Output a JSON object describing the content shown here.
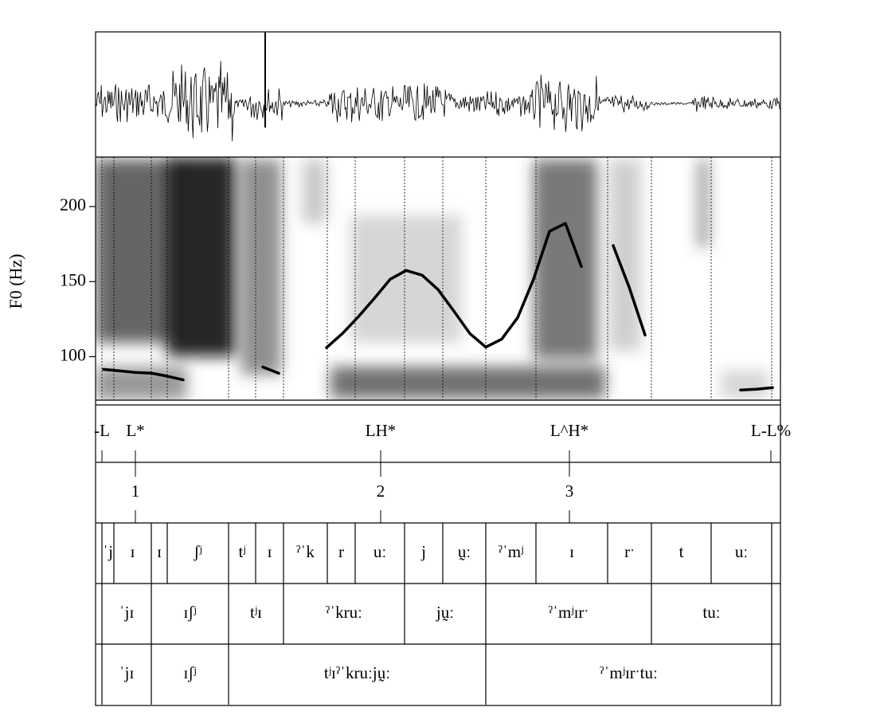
{
  "chart_data": {
    "type": "line",
    "ylabel": "F0 (Hz)",
    "color": "#000000",
    "ylim": [
      71,
      233
    ],
    "yticks": [
      100,
      150,
      200
    ],
    "categories": [
      null,
      null,
      null,
      null,
      null,
      null,
      null,
      null,
      null,
      null,
      null,
      null,
      null,
      null,
      null,
      null,
      null,
      null,
      null,
      null,
      null,
      null,
      null,
      null,
      null,
      null,
      null,
      null,
      null,
      null,
      null,
      null,
      null,
      null,
      null,
      null,
      null,
      null,
      null,
      null,
      null,
      null,
      null
    ],
    "values": [
      91.5,
      90.5,
      89.5,
      89,
      87,
      84.5,
      null,
      null,
      null,
      null,
      93.1,
      88.9,
      null,
      null,
      106,
      115.4,
      126.6,
      138.8,
      151.6,
      157.4,
      154.3,
      144.7,
      130.3,
      115.4,
      106.4,
      111.7,
      126,
      151.6,
      183.5,
      188.8,
      160,
      null,
      174,
      146.3,
      114.4,
      null,
      null,
      null,
      null,
      null,
      77.8,
      78.3,
      79.4
    ]
  },
  "tiers": [
    {
      "labels": [
        "-L",
        "L*",
        "LH*",
        "L^H*",
        "L-L%"
      ]
    },
    {
      "labels": [
        "1",
        "2",
        "3"
      ]
    },
    {
      "labels": [
        "ˈj",
        "ɪ",
        "ɪ",
        "ʃʲ",
        "tʲ",
        "ɪ",
        "ˀˈk",
        "r",
        "uː",
        "j",
        "ṵː",
        "ˀˈmʲ",
        "ɪ",
        "rˑ",
        "t",
        "uː"
      ]
    },
    {
      "labels": [
        "ˈjɪ",
        "ɪʃʲ",
        "tʲɪ",
        "ˀˈkruː",
        "jṵː",
        "ˀˈmʲɪrˑ",
        "tuː"
      ]
    },
    {
      "labels": [
        "ˈjɪ",
        "ɪʃʲ",
        "tʲɪˀˈkruːjṵː",
        "ˀˈmʲɪrˑtuː"
      ]
    }
  ]
}
